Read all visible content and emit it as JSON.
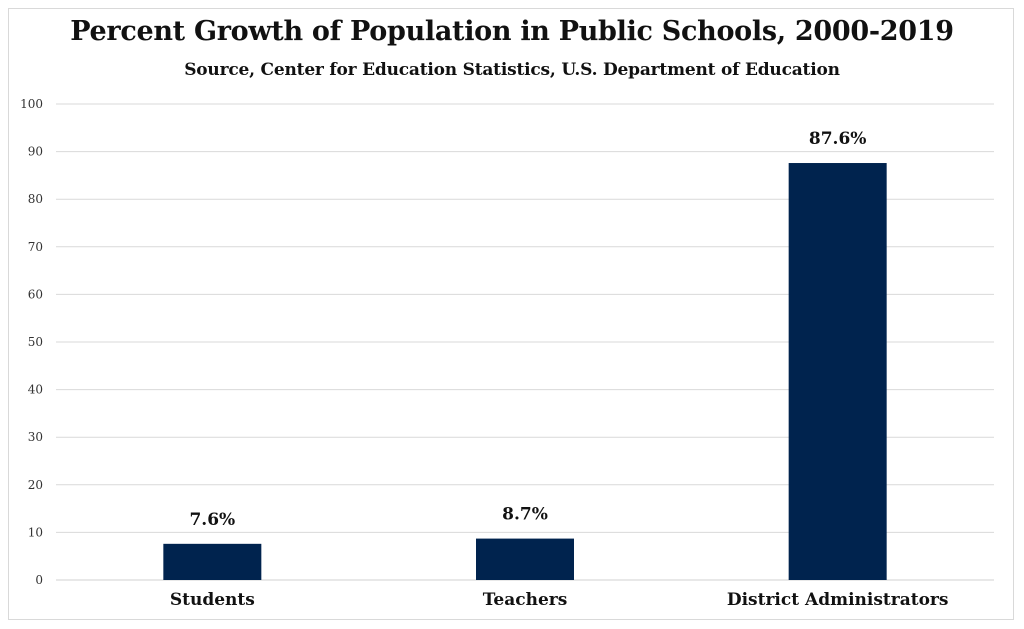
{
  "chart_data": {
    "type": "bar",
    "title": "Percent Growth of Population in Public Schools, 2000-2019",
    "subtitle": "Source, Center for Education Statistics, U.S. Department of Education",
    "categories": [
      "Students",
      "Teachers",
      "District Administrators"
    ],
    "values": [
      7.6,
      8.7,
      87.6
    ],
    "data_labels": [
      "7.6%",
      "8.7%",
      "87.6%"
    ],
    "ylim": [
      0,
      100
    ],
    "yticks": [
      0,
      10,
      20,
      30,
      40,
      50,
      60,
      70,
      80,
      90,
      100
    ],
    "xlabel": "",
    "ylabel": "",
    "grid": true,
    "bar_color": "#00234e",
    "grid_color": "#d9d9d9"
  }
}
